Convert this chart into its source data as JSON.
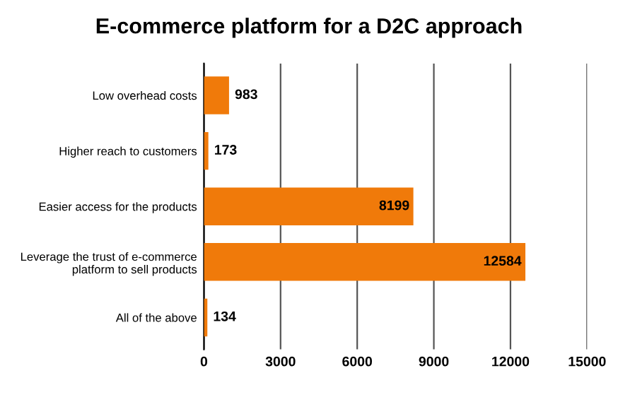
{
  "chart_data": {
    "type": "bar",
    "orientation": "horizontal",
    "title": "E-commerce platform for a D2C approach",
    "categories": [
      "Low overhead costs",
      "Higher reach to customers",
      "Easier access for the products",
      "Leverage the trust of e-commerce\nplatform to sell products",
      "All of the above"
    ],
    "values": [
      983,
      173,
      8199,
      12584,
      134
    ],
    "color": "#f07a0a",
    "xlim": [
      0,
      15000
    ],
    "xticks": [
      0,
      3000,
      6000,
      9000,
      12000,
      15000
    ],
    "grid": "x",
    "data_labels": true
  }
}
